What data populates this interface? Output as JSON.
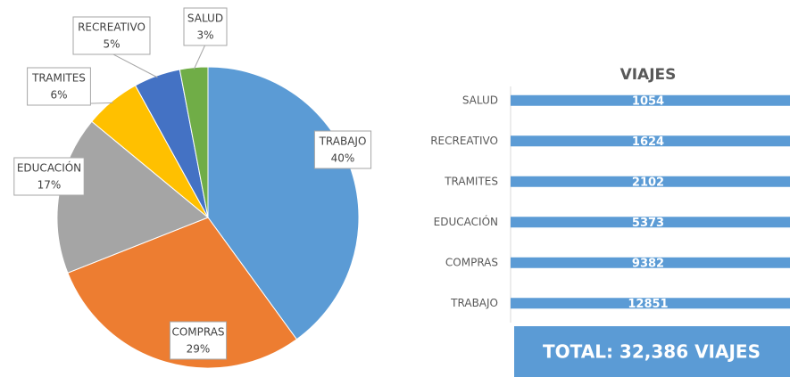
{
  "chart_data": [
    {
      "type": "pie",
      "categories": [
        "TRABAJO",
        "COMPRAS",
        "EDUCACIÓN",
        "TRAMITES",
        "RECREATIVO",
        "SALUD"
      ],
      "values": [
        40,
        29,
        17,
        6,
        5,
        3
      ],
      "value_labels": [
        "40%",
        "29%",
        "17%",
        "6%",
        "5%",
        "3%"
      ],
      "colors": [
        "#5b9bd5",
        "#ed7d31",
        "#a5a5a5",
        "#ffc000",
        "#4472c4",
        "#70ad47"
      ]
    },
    {
      "type": "barh",
      "title": "VIAJES",
      "categories": [
        "SALUD",
        "RECREATIVO",
        "TRAMITES",
        "EDUCACIÓN",
        "COMPRAS",
        "TRABAJO"
      ],
      "values": [
        1054,
        1624,
        2102,
        5373,
        9382,
        12851
      ],
      "color": "#5b9bd5",
      "xlim": [
        0,
        1000
      ]
    }
  ],
  "total": "TOTAL: 32,386 VIAJES"
}
